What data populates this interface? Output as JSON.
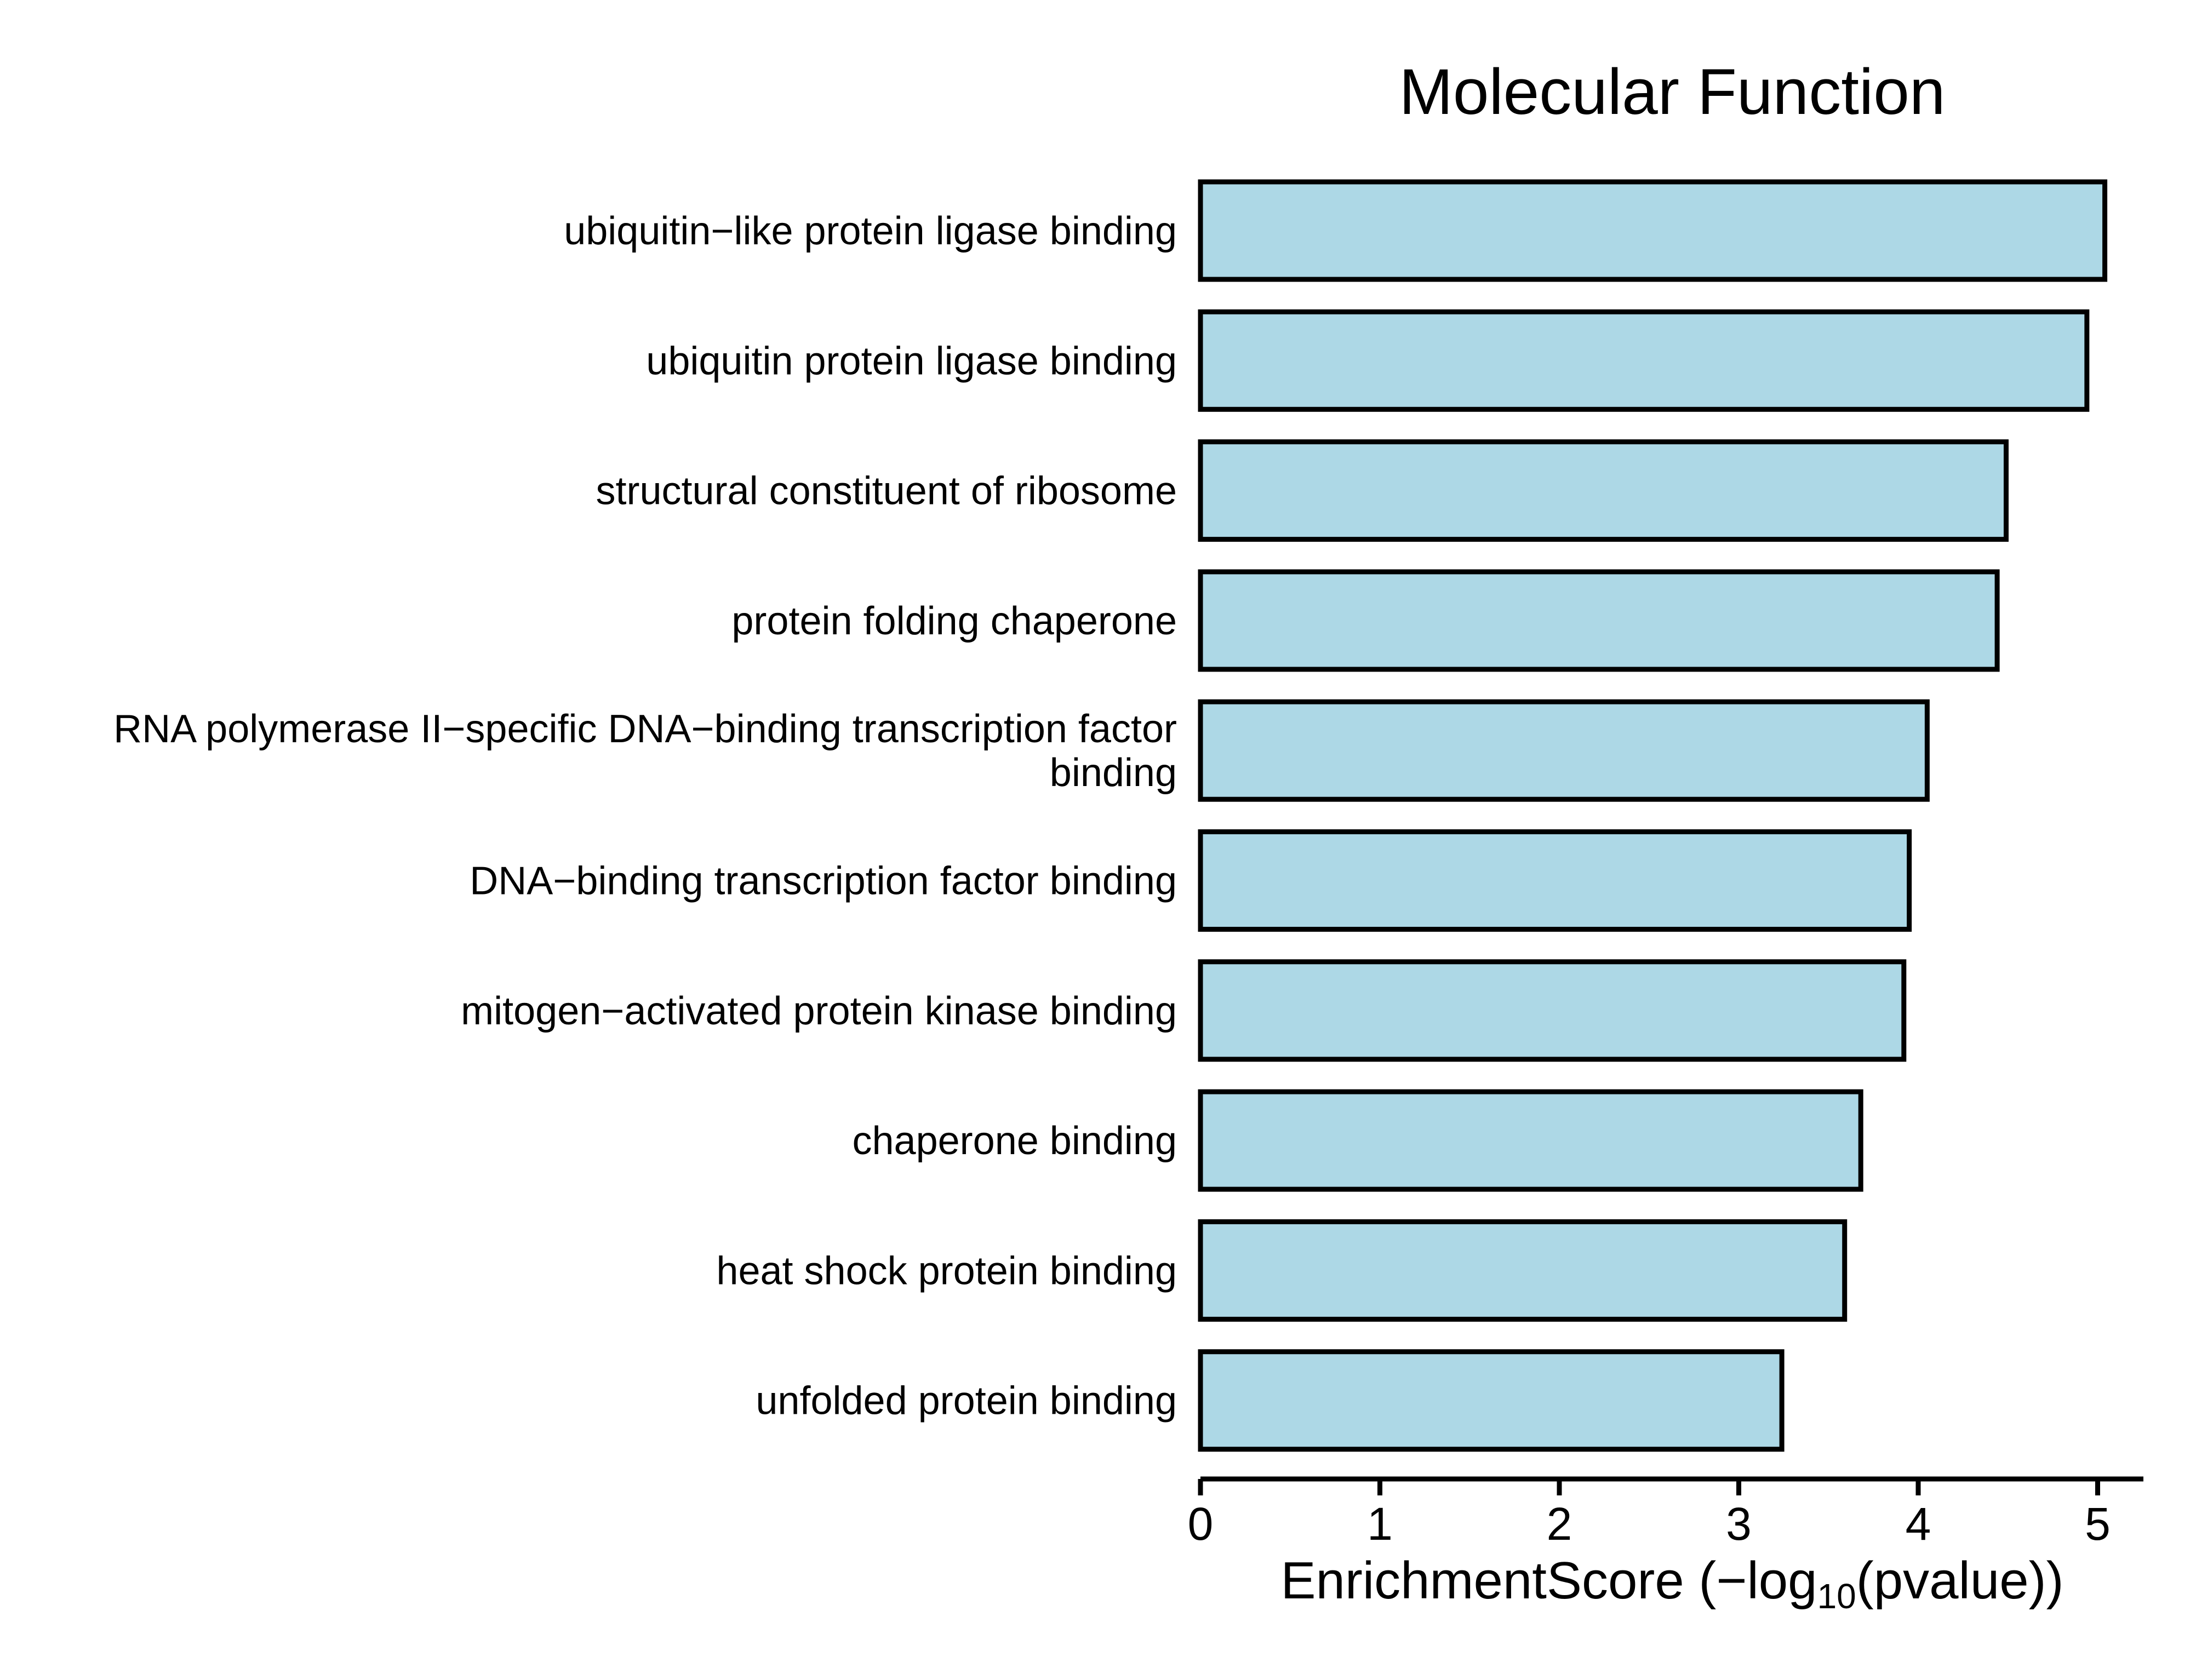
{
  "chart_data": {
    "type": "bar",
    "orientation": "horizontal",
    "title": "Molecular Function",
    "xlabel": "EnrichmentScore (−log10(pvalue))",
    "xlabel_parts": {
      "before": "EnrichmentScore (−log",
      "subscript": "10",
      "after": "(pvalue))"
    },
    "ylabel": "",
    "categories": [
      [
        "ubiquitin−like protein ligase binding"
      ],
      [
        "ubiquitin protein ligase binding"
      ],
      [
        "structural constituent of ribosome"
      ],
      [
        "protein folding chaperone"
      ],
      [
        "RNA polymerase II−specific DNA−binding transcription factor",
        "binding"
      ],
      [
        "DNA−binding transcription factor binding"
      ],
      [
        "mitogen−activated protein kinase binding"
      ],
      [
        "chaperone binding"
      ],
      [
        "heat shock protein binding"
      ],
      [
        "unfolded protein binding"
      ]
    ],
    "values": [
      5.04,
      4.94,
      4.49,
      4.44,
      4.05,
      3.95,
      3.92,
      3.68,
      3.59,
      3.24
    ],
    "xlim": [
      0,
      5.3
    ],
    "xticks": [
      0,
      1,
      2,
      3,
      4,
      5
    ],
    "bar_color": "#add8e6",
    "grid": false,
    "legend": "none"
  }
}
